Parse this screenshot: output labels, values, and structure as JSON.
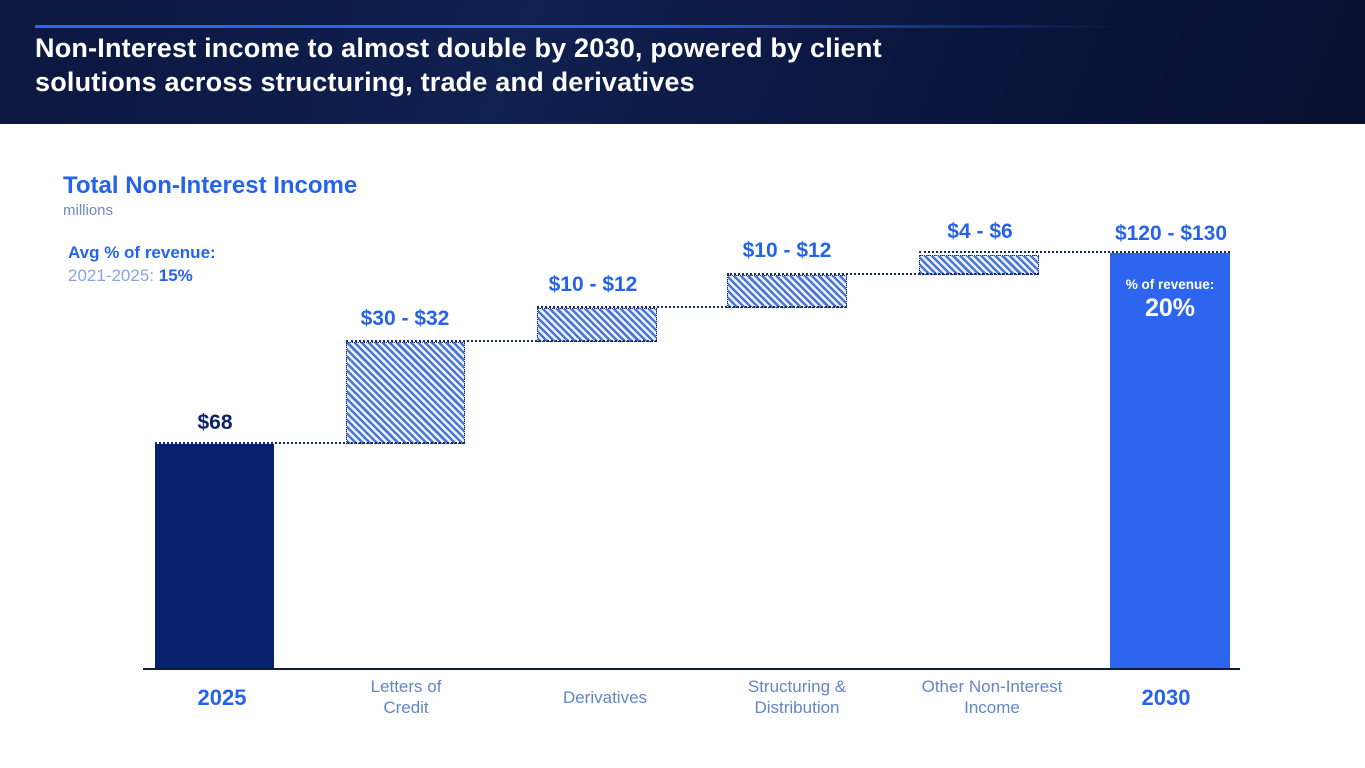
{
  "header": {
    "title": "Non-Interest income to almost double by 2030, powered by client\nsolutions across structuring, trade and derivatives"
  },
  "colors": {
    "header_bg": "#0b1640",
    "accent_line": "#2a64e8",
    "brand_blue": "#2563eb",
    "dark_navy_bar": "#05216b",
    "bright_blue_bar": "#2d65ee",
    "hatch_stripe": "#4c77d7",
    "muted_axis_text": "#6286c7"
  },
  "chart_data": {
    "type": "bar",
    "subtype": "waterfall",
    "title": "Total Non-Interest Income",
    "units": "millions",
    "xlabel": "",
    "ylabel": "millions",
    "ylim": [
      0,
      140
    ],
    "grid": false,
    "legend": false,
    "categories": [
      "2025",
      "Letters of Credit",
      "Derivatives",
      "Structuring & Distribution",
      "Other Non-Interest Income",
      "2030"
    ],
    "annotations": {
      "avg_label": "Avg % of revenue:",
      "avg_period": "2021-2025:",
      "avg_value": "15%"
    },
    "bars": [
      {
        "category": "2025",
        "category_display": "2025",
        "label": "$68",
        "value": 68,
        "role": "start-total",
        "style": "solid-navy"
      },
      {
        "category": "Letters of Credit",
        "category_display": "Letters of\nCredit",
        "label": "$30 - $32",
        "value_min": 30,
        "value_max": 32,
        "role": "increment",
        "style": "hatched"
      },
      {
        "category": "Derivatives",
        "category_display": "Derivatives",
        "label": "$10 - $12",
        "value_min": 10,
        "value_max": 12,
        "role": "increment",
        "style": "hatched"
      },
      {
        "category": "Structuring & Distribution",
        "category_display": "Structuring &\nDistribution",
        "label": "$10 - $12",
        "value_min": 10,
        "value_max": 12,
        "role": "increment",
        "style": "hatched"
      },
      {
        "category": "Other Non-Interest Income",
        "category_display": "Other Non-Interest\nIncome",
        "label": "$4 - $6",
        "value_min": 4,
        "value_max": 6,
        "role": "increment",
        "style": "hatched"
      },
      {
        "category": "2030",
        "category_display": "2030",
        "label": "$120 - $130",
        "value_min": 120,
        "value_max": 130,
        "role": "end-total",
        "style": "solid-blue",
        "annotation_label": "% of revenue:",
        "annotation_value": "20%"
      }
    ]
  }
}
